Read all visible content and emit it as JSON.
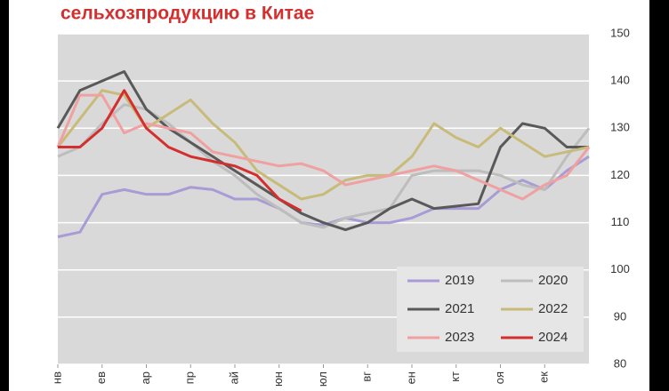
{
  "chart_data": {
    "type": "line",
    "title": "сельхозпродукцию в Китае",
    "x": [
      0,
      0.5,
      1,
      1.5,
      2,
      2.5,
      3,
      3.5,
      4,
      4.5,
      5,
      5.5,
      6,
      6.5,
      7,
      7.5,
      8,
      8.5,
      9,
      9.5,
      10,
      10.5,
      11,
      11.5,
      12
    ],
    "xlim": [
      0,
      12
    ],
    "xticks": [
      {
        "value": 0,
        "label": "нв"
      },
      {
        "value": 1,
        "label": "ев"
      },
      {
        "value": 2,
        "label": "ар"
      },
      {
        "value": 3,
        "label": "пр"
      },
      {
        "value": 4,
        "label": "ай"
      },
      {
        "value": 5,
        "label": "юн"
      },
      {
        "value": 6,
        "label": "юл"
      },
      {
        "value": 7,
        "label": "вг"
      },
      {
        "value": 8,
        "label": "ен"
      },
      {
        "value": 9,
        "label": "кт"
      },
      {
        "value": 10,
        "label": "оя"
      },
      {
        "value": 11,
        "label": "ек"
      }
    ],
    "ylim": [
      80,
      150
    ],
    "yticks": [
      80,
      90,
      100,
      110,
      120,
      130,
      140,
      150
    ],
    "grid": true,
    "legend": "lower right",
    "series": [
      {
        "name": "2019",
        "color": "#a99bd6",
        "values": [
          107,
          108,
          116,
          117,
          116,
          116,
          117.5,
          117,
          115,
          115,
          113,
          110,
          109.5,
          111,
          110,
          110,
          111,
          113,
          113,
          113,
          117,
          119,
          117,
          121,
          124
        ]
      },
      {
        "name": "2020",
        "color": "#bdbdbd",
        "values": [
          124,
          126,
          131,
          135,
          134,
          131,
          127,
          123,
          120,
          116,
          113,
          110,
          109,
          111,
          112,
          113,
          120,
          121,
          121,
          121,
          120,
          118,
          117,
          124,
          130
        ]
      },
      {
        "name": "2021",
        "color": "#595959",
        "values": [
          130,
          138,
          140,
          142,
          134,
          130,
          127,
          124,
          121,
          118,
          115,
          112,
          110,
          108.5,
          110,
          113,
          115,
          113,
          113.5,
          114,
          126,
          131,
          130,
          126,
          126
        ]
      },
      {
        "name": "2022",
        "color": "#c8bb7a",
        "values": [
          126,
          132,
          138,
          137,
          130,
          133,
          136,
          131,
          127,
          121,
          118,
          115,
          116,
          119,
          120,
          120,
          124,
          131,
          128,
          126,
          130,
          127,
          124,
          125,
          126
        ]
      },
      {
        "name": "2023",
        "color": "#f0a0a0",
        "values": [
          126,
          137,
          137,
          129,
          131,
          130,
          129,
          125,
          124,
          123,
          122,
          122.5,
          121,
          118,
          119,
          120,
          121,
          122,
          121,
          119,
          117,
          115,
          118,
          120,
          126
        ]
      },
      {
        "name": "2024",
        "color": "#d42f2f",
        "values": [
          126,
          126,
          130,
          138,
          130,
          126,
          124,
          123,
          122,
          120,
          115,
          112.5,
          null,
          null,
          null,
          null,
          null,
          null,
          null,
          null,
          null,
          null,
          null,
          null,
          null
        ]
      }
    ]
  }
}
